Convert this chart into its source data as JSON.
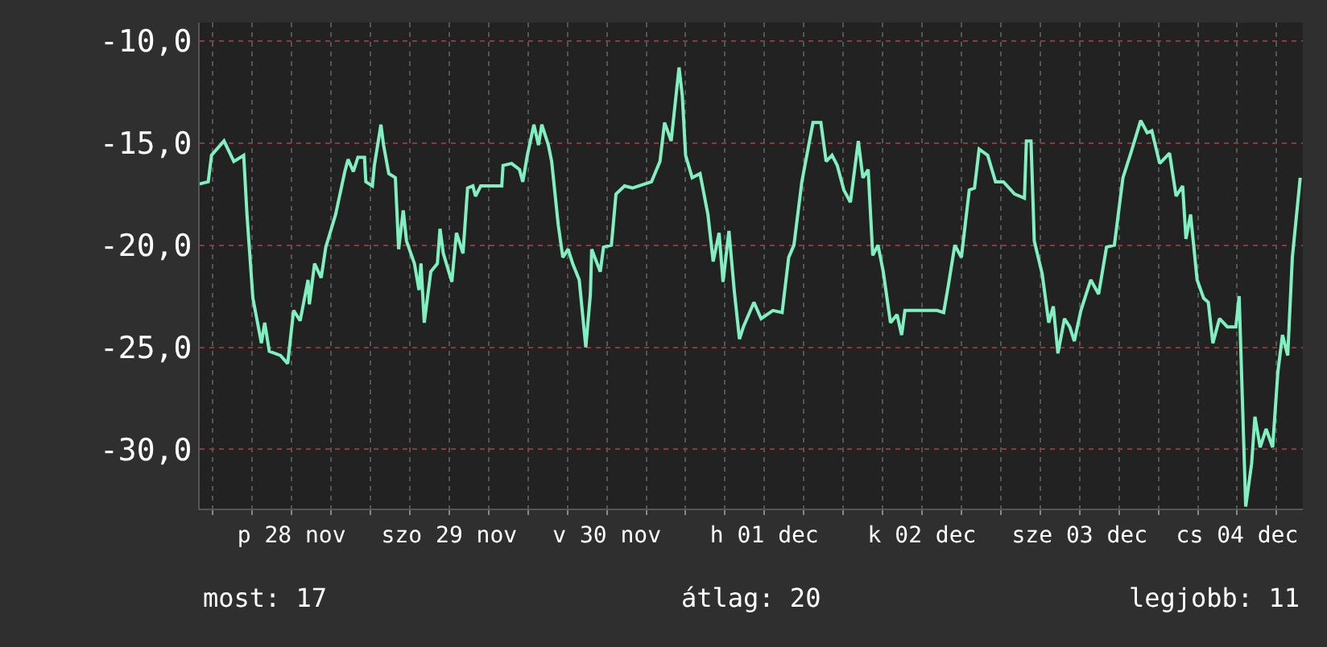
{
  "chart_data": {
    "type": "line",
    "x": [
      "--11-27T22:00",
      "--11-27T23:18",
      "--11-27T23:48",
      "--11-28T01:42",
      "--11-28T03:12",
      "--11-28T04:42",
      "--11-28T05:12",
      "--11-28T06:06",
      "--11-28T07:24",
      "--11-28T07:54",
      "--11-28T08:36",
      "--11-28T10:18",
      "--11-28T11:24",
      "--11-28T12:18",
      "--11-28T13:18",
      "--11-28T14:30",
      "--11-28T14:42",
      "--11-28T15:30",
      "--11-28T16:30",
      "--11-28T17:12",
      "--11-28T18:42",
      "--11-28T20:06",
      "--11-28T20:36",
      "--11-28T21:24",
      "--11-28T22:06",
      "--11-28T23:06",
      "--11-28T23:18",
      "--11-29T00:18",
      "--11-29T00:36",
      "--11-29T01:36",
      "--11-29T02:00",
      "--11-29T02:48",
      "--11-29T03:48",
      "--11-29T04:18",
      "--11-29T05:00",
      "--11-29T05:30",
      "--11-29T06:42",
      "--11-29T07:24",
      "--11-29T07:42",
      "--11-29T08:12",
      "--11-29T09:12",
      "--11-29T10:12",
      "--11-29T10:36",
      "--11-29T11:06",
      "--11-29T12:24",
      "--11-29T13:06",
      "--11-29T14:06",
      "--11-29T14:48",
      "--11-29T15:36",
      "--11-29T16:00",
      "--11-29T16:48",
      "--11-29T20:00",
      "--11-29T20:12",
      "--11-29T21:30",
      "--11-29T22:42",
      "--11-29T23:12",
      "--11-29T23:54",
      "--11-30T00:54",
      "--11-30T01:36",
      "--11-30T02:06",
      "--11-30T03:06",
      "--11-30T03:36",
      "--11-30T04:36",
      "--11-30T05:18",
      "--11-30T06:06",
      "--11-30T06:48",
      "--11-30T07:48",
      "--11-30T08:48",
      "--11-30T09:30",
      "--11-30T09:42",
      "--11-30T11:00",
      "--11-30T11:30",
      "--11-30T12:42",
      "--11-30T13:24",
      "--11-30T14:42",
      "--11-30T15:54",
      "--11-30T18:48",
      "--11-30T20:06",
      "--11-30T20:48",
      "--11-30T21:48",
      "--11-30T23:00",
      "--11-30T23:30",
      "--12-01T00:00",
      "--12-01T01:00",
      "--12-01T02:12",
      "--12-01T03:24",
      "--12-01T04:12",
      "--12-01T05:06",
      "--12-01T05:42",
      "--12-01T06:36",
      "--12-01T07:24",
      "--12-01T08:12",
      "--12-01T08:48",
      "--12-01T10:24",
      "--12-01T11:30",
      "--12-01T13:18",
      "--12-01T14:42",
      "--12-01T15:42",
      "--12-01T16:30",
      "--12-01T17:42",
      "--12-01T19:24",
      "--12-01T20:36",
      "--12-01T21:24",
      "--12-01T22:18",
      "--12-01T23:06",
      "--12-02T00:06",
      "--12-02T01:06",
      "--12-02T02:18",
      "--12-02T03:00",
      "--12-02T03:48",
      "--12-02T04:30",
      "--12-02T05:18",
      "--12-02T06:06",
      "--12-02T07:12",
      "--12-02T08:12",
      "--12-02T08:54",
      "--12-02T09:24",
      "--12-02T14:18",
      "--12-02T15:18",
      "--12-02T16:00",
      "--12-02T17:00",
      "--12-02T18:00",
      "--12-02T19:12",
      "--12-02T20:00",
      "--12-02T20:42",
      "--12-02T22:00",
      "--12-02T23:12",
      "--12-03T00:24",
      "--12-03T02:06",
      "--12-03T03:36",
      "--12-03T03:54",
      "--12-03T04:36",
      "--12-03T05:06",
      "--12-03T06:18",
      "--12-03T07:18",
      "--12-03T08:00",
      "--12-03T08:42",
      "--12-03T09:42",
      "--12-03T10:30",
      "--12-03T11:12",
      "--12-03T12:12",
      "--12-03T13:42",
      "--12-03T14:54",
      "--12-03T16:06",
      "--12-03T17:18",
      "--12-03T18:36",
      "--12-03T19:48",
      "--12-03T21:18",
      "--12-03T22:18",
      "--12-03T23:00",
      "--12-04T00:12",
      "--12-04T01:42",
      "--12-04T02:42",
      "--12-04T03:42",
      "--12-04T04:12",
      "--12-04T04:54",
      "--12-04T05:54",
      "--12-04T06:54",
      "--12-04T07:36",
      "--12-04T08:18",
      "--12-04T09:18",
      "--12-04T10:30",
      "--12-04T11:48",
      "--12-04T12:18",
      "--12-04T13:18",
      "--12-04T14:12",
      "--12-04T14:42",
      "--12-04T15:30",
      "--12-04T16:24",
      "--12-04T17:24",
      "--12-04T18:12",
      "--12-04T18:54",
      "--12-04T19:42",
      "--12-04T20:24",
      "--12-04T21:36"
    ],
    "series": [
      {
        "color": "#80f0c0",
        "values": [
          -17.0,
          -16.9,
          -15.6,
          -14.9,
          -15.9,
          -15.6,
          -18.5,
          -22.6,
          -24.8,
          -23.8,
          -25.2,
          -25.4,
          -25.8,
          -23.2,
          -23.7,
          -21.7,
          -22.9,
          -20.9,
          -21.6,
          -20.1,
          -18.5,
          -16.4,
          -15.8,
          -16.4,
          -15.7,
          -15.7,
          -16.9,
          -17.1,
          -16.1,
          -14.1,
          -15.1,
          -16.5,
          -16.7,
          -20.2,
          -18.3,
          -19.8,
          -20.9,
          -22.2,
          -20.9,
          -23.8,
          -21.3,
          -20.9,
          -19.2,
          -20.4,
          -21.8,
          -19.4,
          -20.4,
          -17.2,
          -17.1,
          -17.6,
          -17.1,
          -17.1,
          -16.1,
          -16.0,
          -16.3,
          -16.9,
          -15.6,
          -14.1,
          -15.1,
          -14.1,
          -15.1,
          -15.9,
          -19.0,
          -20.6,
          -20.2,
          -20.9,
          -21.7,
          -25.0,
          -22.4,
          -20.2,
          -21.3,
          -20.1,
          -20.0,
          -17.5,
          -17.1,
          -17.2,
          -16.9,
          -15.9,
          -14.0,
          -14.9,
          -11.3,
          -12.7,
          -15.6,
          -16.7,
          -16.5,
          -18.5,
          -20.8,
          -19.4,
          -21.8,
          -19.3,
          -22.2,
          -24.6,
          -24.0,
          -22.8,
          -23.6,
          -23.2,
          -23.3,
          -20.6,
          -20.0,
          -16.9,
          -14.0,
          -14.0,
          -15.9,
          -15.6,
          -16.1,
          -17.3,
          -17.9,
          -14.9,
          -16.7,
          -16.3,
          -20.5,
          -20.0,
          -21.3,
          -23.8,
          -23.4,
          -24.4,
          -23.2,
          -23.2,
          -23.3,
          -22.0,
          -20.0,
          -20.6,
          -17.3,
          -17.2,
          -15.3,
          -15.6,
          -16.9,
          -16.9,
          -17.5,
          -17.7,
          -14.9,
          -14.9,
          -19.8,
          -21.4,
          -23.8,
          -23.0,
          -25.3,
          -23.6,
          -24.0,
          -24.7,
          -23.2,
          -21.7,
          -22.4,
          -20.1,
          -20.0,
          -16.7,
          -15.5,
          -13.9,
          -14.5,
          -14.4,
          -16.0,
          -15.5,
          -17.6,
          -17.1,
          -19.7,
          -18.5,
          -21.7,
          -22.6,
          -22.8,
          -24.8,
          -23.6,
          -24.0,
          -24.0,
          -22.5,
          -32.8,
          -30.7,
          -28.4,
          -29.9,
          -29.0,
          -29.9,
          -26.2,
          -24.4,
          -25.4,
          -20.6,
          -16.7
        ]
      }
    ],
    "xlim": [
      "--11-27T22:00",
      "--12-04T22:00"
    ],
    "xticks": [
      {
        "value": "--11-28T00:00",
        "label": null
      },
      {
        "value": "--11-28T06:00",
        "label": null
      },
      {
        "value": "--11-28T12:00",
        "label": "p 28 nov"
      },
      {
        "value": "--11-28T18:00",
        "label": null
      },
      {
        "value": "--11-29T00:00",
        "label": null
      },
      {
        "value": "--11-29T06:00",
        "label": null
      },
      {
        "value": "--11-29T12:00",
        "label": "szo 29 nov"
      },
      {
        "value": "--11-29T18:00",
        "label": null
      },
      {
        "value": "--11-30T00:00",
        "label": null
      },
      {
        "value": "--11-30T06:00",
        "label": null
      },
      {
        "value": "--11-30T12:00",
        "label": "v 30 nov"
      },
      {
        "value": "--11-30T18:00",
        "label": null
      },
      {
        "value": "--12-01T00:00",
        "label": null
      },
      {
        "value": "--12-01T06:00",
        "label": null
      },
      {
        "value": "--12-01T12:00",
        "label": "h 01 dec"
      },
      {
        "value": "--12-01T18:00",
        "label": null
      },
      {
        "value": "--12-02T00:00",
        "label": null
      },
      {
        "value": "--12-02T06:00",
        "label": null
      },
      {
        "value": "--12-02T12:00",
        "label": "k 02 dec"
      },
      {
        "value": "--12-02T18:00",
        "label": null
      },
      {
        "value": "--12-03T00:00",
        "label": null
      },
      {
        "value": "--12-03T06:00",
        "label": null
      },
      {
        "value": "--12-03T12:00",
        "label": "sze 03 dec"
      },
      {
        "value": "--12-03T18:00",
        "label": null
      },
      {
        "value": "--12-04T00:00",
        "label": null
      },
      {
        "value": "--12-04T06:00",
        "label": null
      },
      {
        "value": "--12-04T12:00",
        "label": "cs 04 dec"
      },
      {
        "value": "--12-04T18:00",
        "label": null
      }
    ],
    "ylim": [
      -32.9,
      -9.1
    ],
    "yticks": [
      {
        "value": -10,
        "label": "-10,0"
      },
      {
        "value": -15,
        "label": "-15,0"
      },
      {
        "value": -20,
        "label": "-20,0"
      },
      {
        "value": -25,
        "label": "-25,0"
      },
      {
        "value": -30,
        "label": "-30,0"
      }
    ],
    "grid": true,
    "marker": "none",
    "line_style": "solid",
    "annotations": [
      "most: 17",
      "átlag: 20",
      "legjobb: 11"
    ]
  }
}
